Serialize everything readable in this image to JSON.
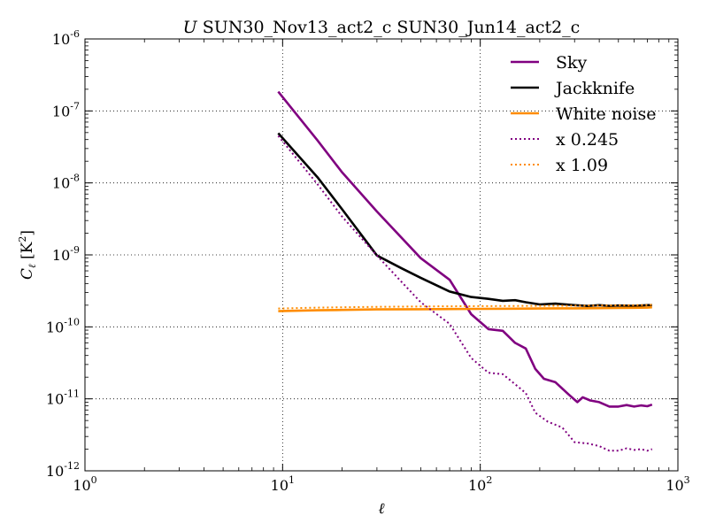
{
  "chart_data": {
    "type": "line",
    "title": "U SUN30_Nov13_act2_c SUN30_Jun14_act2_c",
    "title_math": "U",
    "title_rest": " SUN30_Nov13_act2_c SUN30_Jun14_act2_c",
    "xlabel": "ℓ",
    "ylabel": "C_ℓ [K²]",
    "ylabel_parts": {
      "c": "C",
      "sub": "ℓ",
      "unit": " [K",
      "sup": "2",
      "close": "]"
    },
    "xscale": "log",
    "yscale": "log",
    "xlim": [
      1,
      1000
    ],
    "ylim": [
      1e-12,
      1e-06
    ],
    "grid": true,
    "grid_style": "dotted",
    "legend_position": "top-right",
    "x_ticks": [
      {
        "value": 1,
        "base": "10",
        "exp": "0"
      },
      {
        "value": 10,
        "base": "10",
        "exp": "1"
      },
      {
        "value": 100,
        "base": "10",
        "exp": "2"
      },
      {
        "value": 1000,
        "base": "10",
        "exp": "3"
      }
    ],
    "y_ticks": [
      {
        "value": 1e-12,
        "base": "10",
        "exp": "-12"
      },
      {
        "value": 1e-11,
        "base": "10",
        "exp": "-11"
      },
      {
        "value": 1e-10,
        "base": "10",
        "exp": "-10"
      },
      {
        "value": 1e-09,
        "base": "10",
        "exp": "-9"
      },
      {
        "value": 1e-08,
        "base": "10",
        "exp": "-8"
      },
      {
        "value": 1e-07,
        "base": "10",
        "exp": "-7"
      },
      {
        "value": 1e-06,
        "base": "10",
        "exp": "-6"
      }
    ],
    "series": [
      {
        "name": "Sky",
        "color": "#800080",
        "style": "solid",
        "x": [
          9.5,
          15,
          20,
          30,
          50,
          70,
          90,
          110,
          130,
          150,
          170,
          190,
          210,
          240,
          280,
          310,
          330,
          360,
          400,
          450,
          500,
          550,
          600,
          650,
          700,
          740
        ],
        "y": [
          1.85e-07,
          3.9e-08,
          1.4e-08,
          4e-09,
          9e-10,
          4.5e-10,
          1.5e-10,
          9.3e-11,
          8.8e-11,
          6e-11,
          5e-11,
          2.6e-11,
          1.9e-11,
          1.7e-11,
          1.15e-11,
          9e-12,
          1.05e-11,
          9.5e-12,
          9e-12,
          7.8e-12,
          7.8e-12,
          8.2e-12,
          7.8e-12,
          8.1e-12,
          7.9e-12,
          8.3e-12
        ]
      },
      {
        "name": "Jackknife",
        "color": "#000000",
        "style": "solid",
        "x": [
          9.5,
          15,
          20,
          30,
          40,
          50,
          70,
          90,
          110,
          130,
          150,
          170,
          200,
          240,
          300,
          350,
          400,
          450,
          500,
          600,
          700,
          740
        ],
        "y": [
          4.9e-08,
          1.2e-08,
          4.3e-09,
          9.8e-10,
          6.5e-10,
          4.8e-10,
          3.1e-10,
          2.6e-10,
          2.45e-10,
          2.3e-10,
          2.35e-10,
          2.2e-10,
          2.05e-10,
          2.1e-10,
          2e-10,
          1.95e-10,
          2e-10,
          1.95e-10,
          1.98e-10,
          1.95e-10,
          2e-10,
          2e-10
        ]
      },
      {
        "name": "White noise",
        "color": "#ff8c00",
        "style": "solid",
        "x": [
          9.5,
          15,
          20,
          30,
          50,
          70,
          100,
          150,
          200,
          300,
          400,
          500,
          600,
          700,
          740
        ],
        "y": [
          1.65e-10,
          1.7e-10,
          1.72e-10,
          1.75e-10,
          1.76e-10,
          1.77e-10,
          1.78e-10,
          1.79e-10,
          1.8e-10,
          1.81e-10,
          1.82e-10,
          1.83e-10,
          1.84e-10,
          1.85e-10,
          1.87e-10
        ]
      },
      {
        "name": "x 0.245",
        "color": "#800080",
        "style": "dotted",
        "x": [
          9.5,
          15,
          20,
          30,
          40,
          50,
          70,
          90,
          110,
          130,
          150,
          170,
          190,
          220,
          260,
          300,
          350,
          400,
          450,
          500,
          550,
          600,
          650,
          700,
          740
        ],
        "y": [
          4.5e-08,
          9.6e-09,
          3.4e-09,
          9.8e-10,
          4.2e-10,
          2.2e-10,
          1.1e-10,
          3.7e-11,
          2.3e-11,
          2.2e-11,
          1.6e-11,
          1.2e-11,
          6.4e-12,
          4.8e-12,
          4e-12,
          2.5e-12,
          2.4e-12,
          2.2e-12,
          1.9e-12,
          1.9e-12,
          2.05e-12,
          1.95e-12,
          2e-12,
          1.9e-12,
          2e-12
        ]
      },
      {
        "name": "x 1.09",
        "color": "#ff8c00",
        "style": "dotted",
        "x": [
          9.5,
          15,
          20,
          30,
          50,
          70,
          100,
          150,
          200,
          300,
          400,
          500,
          600,
          700,
          740
        ],
        "y": [
          1.8e-10,
          1.85e-10,
          1.87e-10,
          1.9e-10,
          1.92e-10,
          1.93e-10,
          1.94e-10,
          1.95e-10,
          1.96e-10,
          1.97e-10,
          1.98e-10,
          1.99e-10,
          2e-10,
          2.01e-10,
          2.03e-10
        ]
      }
    ]
  }
}
